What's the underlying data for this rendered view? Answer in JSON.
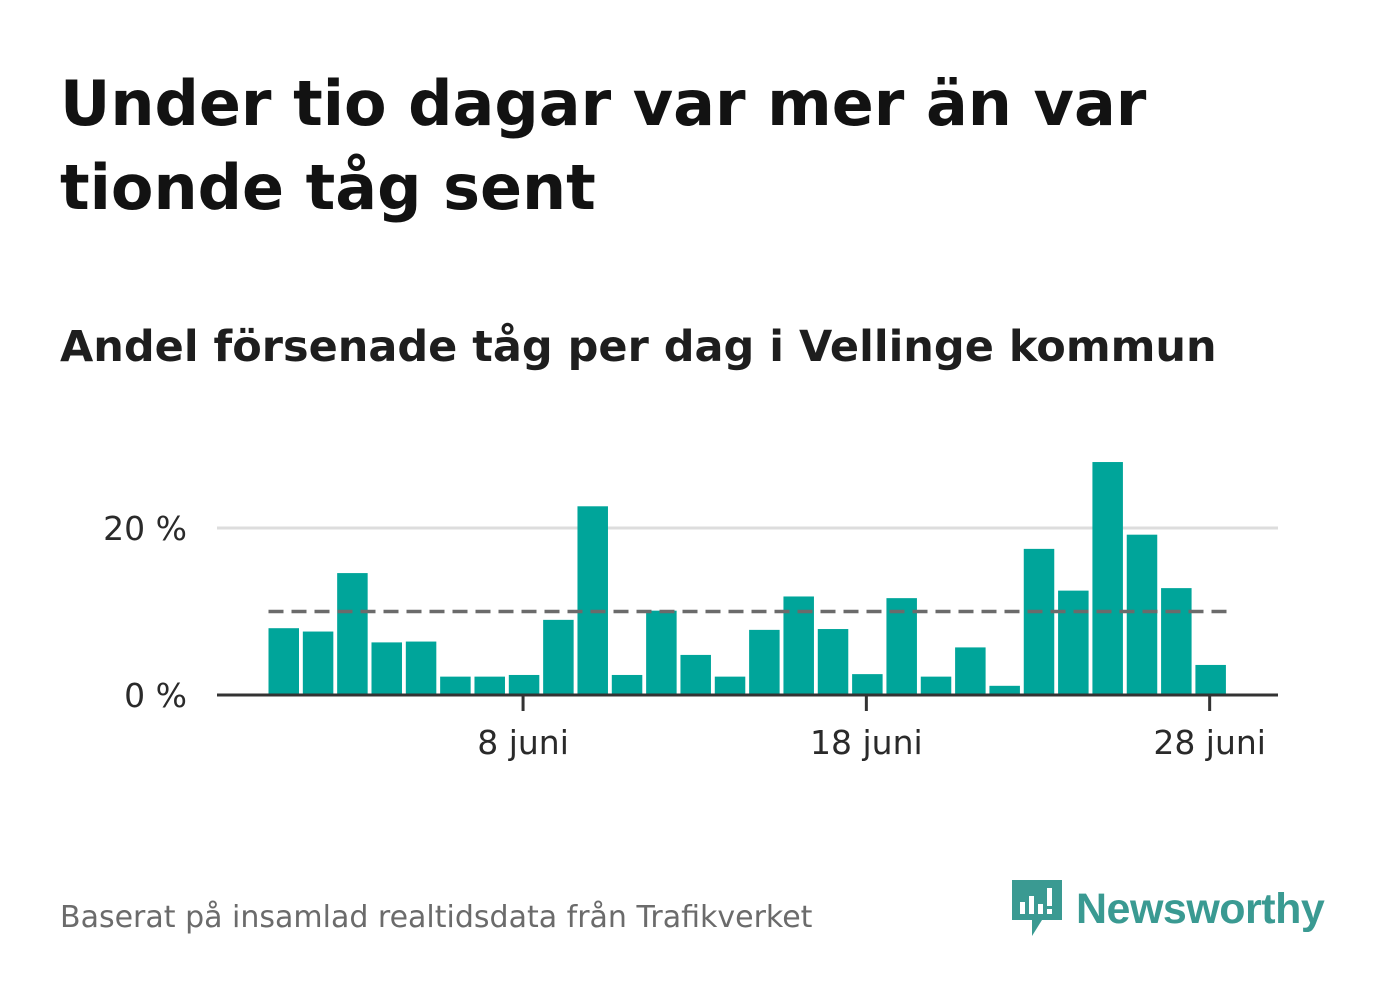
{
  "title": "Under tio dagar var mer än var tionde tåg sent",
  "subtitle": "Andel försenade tåg per dag i Vellinge kommun",
  "footer": "Baserat på insamlad realtidsdata från Trafikverket",
  "logo": {
    "text": "Newsworthy",
    "icon": "newsworthy-bar-chart-icon"
  },
  "colors": {
    "bar": "#00a59a",
    "reference": "#6b6b6b",
    "grid": "#dddddd",
    "axis": "#333333",
    "logo": "#3a9a92"
  },
  "chart_data": {
    "type": "bar",
    "x": [
      "1 juni",
      "2 juni",
      "3 juni",
      "4 juni",
      "5 juni",
      "6 juni",
      "7 juni",
      "8 juni",
      "9 juni",
      "10 juni",
      "11 juni",
      "12 juni",
      "13 juni",
      "14 juni",
      "15 juni",
      "16 juni",
      "17 juni",
      "18 juni",
      "19 juni",
      "20 juni",
      "21 juni",
      "22 juni",
      "23 juni",
      "24 juni",
      "25 juni",
      "26 juni",
      "27 juni",
      "28 juni"
    ],
    "values": [
      8.0,
      7.6,
      14.6,
      6.3,
      6.4,
      2.2,
      2.2,
      2.4,
      9.0,
      22.6,
      2.4,
      10.1,
      4.8,
      2.2,
      7.8,
      11.8,
      7.9,
      2.5,
      11.6,
      2.2,
      5.7,
      1.1,
      17.5,
      12.5,
      27.9,
      19.2,
      12.8,
      3.6
    ],
    "reference_line": {
      "value": 10,
      "style": "dashed"
    },
    "x_ticks": [
      {
        "x": "8 juni",
        "label": "8 juni"
      },
      {
        "x": "18 juni",
        "label": "18 juni"
      },
      {
        "x": "28 juni",
        "label": "28 juni"
      }
    ],
    "y_ticks": [
      {
        "value": 0,
        "label": "0 %"
      },
      {
        "value": 20,
        "label": "20 %"
      }
    ],
    "ylim": [
      0,
      30
    ],
    "grid": true
  }
}
